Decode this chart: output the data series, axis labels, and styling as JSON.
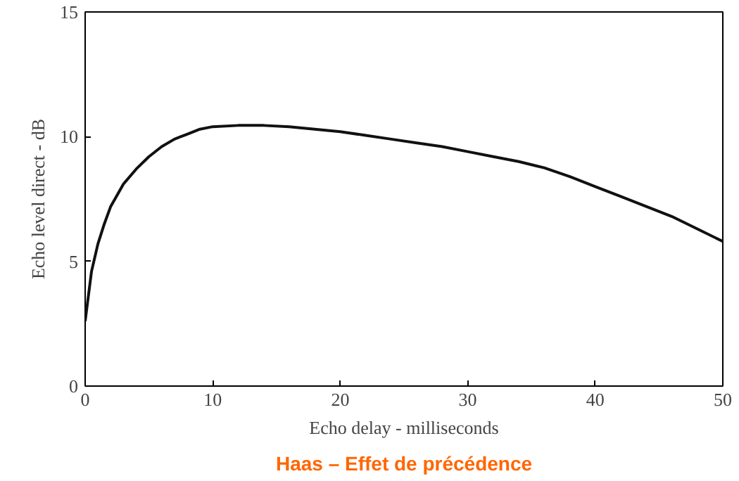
{
  "chart_data": {
    "type": "line",
    "title": "Haas – Effet de précédence",
    "xlabel": "Echo delay - milliseconds",
    "ylabel": "Echo level direct - dB",
    "x": [
      0,
      0.5,
      1,
      1.5,
      2,
      3,
      4,
      5,
      6,
      7,
      8,
      9,
      10,
      12,
      14,
      16,
      18,
      20,
      22,
      24,
      26,
      28,
      30,
      32,
      34,
      36,
      38,
      40,
      42,
      44,
      46,
      48,
      50
    ],
    "series": [
      {
        "color": "#111111",
        "values": [
          2.6,
          4.6,
          5.7,
          6.5,
          7.2,
          8.1,
          8.7,
          9.2,
          9.6,
          9.9,
          10.1,
          10.3,
          10.4,
          10.45,
          10.45,
          10.4,
          10.3,
          10.2,
          10.05,
          9.9,
          9.75,
          9.6,
          9.4,
          9.2,
          9.0,
          8.75,
          8.4,
          8.0,
          7.6,
          7.2,
          6.8,
          6.3,
          5.8
        ]
      }
    ],
    "xlim": [
      0,
      50
    ],
    "ylim": [
      0,
      15
    ],
    "xticks": [
      0,
      10,
      20,
      30,
      40,
      50
    ],
    "yticks": [
      0,
      5,
      10,
      15
    ],
    "grid": false,
    "marker": "none",
    "line_style": "solid"
  }
}
